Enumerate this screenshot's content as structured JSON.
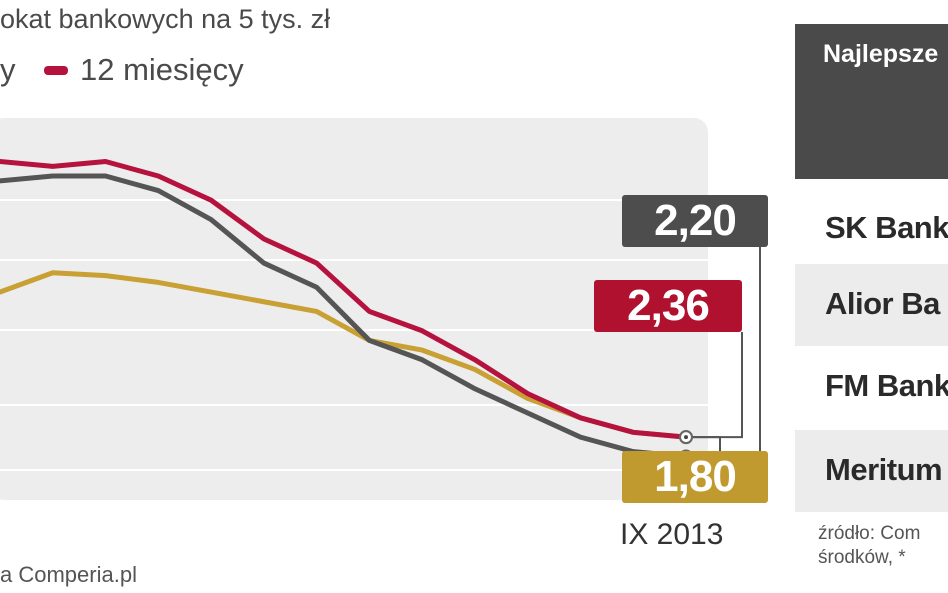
{
  "title": "okat bankowych na 5 tys. zł",
  "legend": [
    {
      "label": "y",
      "color": "#c8a033"
    },
    {
      "label": "12 miesięcy",
      "color": "#b5123e"
    }
  ],
  "source_left": "a Comperia.pl",
  "table": {
    "header": "Najlepsze",
    "rows": [
      "SK Bank",
      "Alior Ba",
      "FM Bank",
      "Meritum"
    ]
  },
  "source_right": {
    "line1": "źródło: Com",
    "line2": "środków, *"
  },
  "chart_data": {
    "type": "line",
    "x": [
      "1",
      "2",
      "3",
      "4",
      "5",
      "6",
      "7",
      "8",
      "9",
      "10",
      "11",
      "12",
      "13",
      "14"
    ],
    "series": [
      {
        "name": "12 miesięcy",
        "color": "#b5123e",
        "values": [
          5.4,
          5.35,
          5.4,
          5.25,
          5.0,
          4.6,
          4.35,
          3.85,
          3.65,
          3.35,
          3.0,
          2.75,
          2.6,
          2.55
        ]
      },
      {
        "name": "",
        "color": "#555555",
        "values": [
          5.2,
          5.25,
          5.25,
          5.1,
          4.8,
          4.35,
          4.1,
          3.55,
          3.35,
          3.05,
          2.8,
          2.55,
          2.4,
          2.35
        ]
      },
      {
        "name": "y",
        "color": "#c8a033",
        "values": [
          4.05,
          4.25,
          4.22,
          4.15,
          4.05,
          3.95,
          3.85,
          3.55,
          3.45,
          3.25,
          2.95,
          2.75,
          2.6,
          2.55
        ]
      }
    ],
    "ylim": [
      1.9,
      5.85
    ],
    "grid": true,
    "end_values": [
      {
        "label": "2,20",
        "color": "#4d4d4d"
      },
      {
        "label": "2,36",
        "color": "#b0112f"
      },
      {
        "label": "1,80",
        "color": "#c09a2e"
      }
    ],
    "period_label": "IX 2013"
  }
}
